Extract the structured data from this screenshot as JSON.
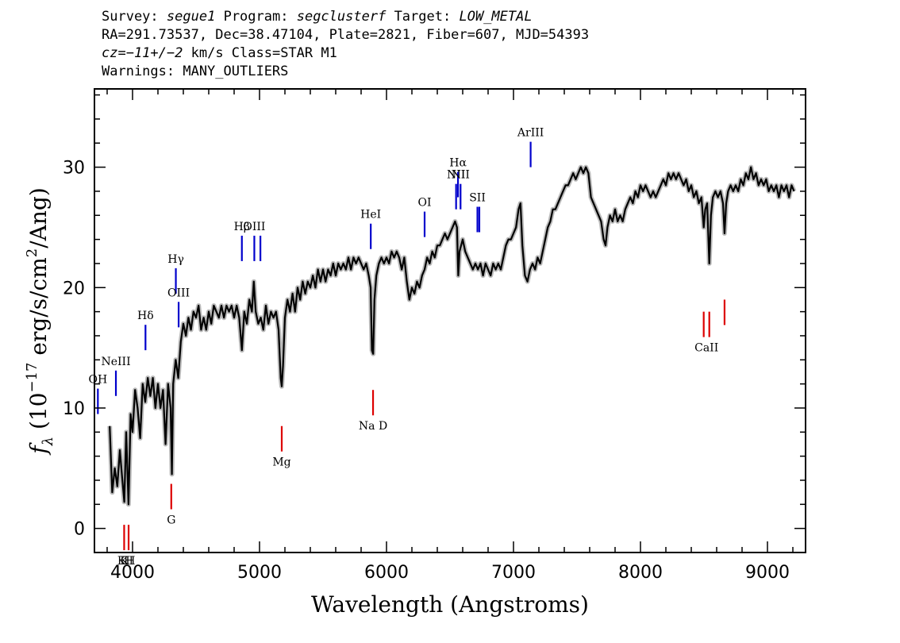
{
  "header": {
    "line1": {
      "survey_label": "Survey:",
      "survey": "segue1",
      "program_label": "Program:",
      "program": "segclusterf",
      "target_label": "Target:",
      "target": "LOW_METAL"
    },
    "line2": "RA=291.73537, Dec=38.47104, Plate=2821, Fiber=607, MJD=54393",
    "line3": {
      "cz": "cz=−11+/−2",
      "rest": "km/s Class=STAR M1"
    },
    "line4": "Warnings: MANY_OUTLIERS"
  },
  "chart_data": {
    "type": "line",
    "xlabel": "Wavelength (Angstroms)",
    "ylabel": "f_λ (10^-17 erg/s/cm^2/Ang)",
    "xlim": [
      3700,
      9300
    ],
    "ylim": [
      -2,
      36.5
    ],
    "xticks": [
      4000,
      5000,
      6000,
      7000,
      8000,
      9000
    ],
    "yticks": [
      0,
      10,
      20,
      30
    ],
    "series_color": "#000000",
    "error_color": "#bbbbbb",
    "emission_color": "#0000cc",
    "absorption_color": "#dd0000",
    "spectrum": [
      [
        3820,
        8.5
      ],
      [
        3840,
        3.0
      ],
      [
        3860,
        5.0
      ],
      [
        3880,
        3.5
      ],
      [
        3900,
        6.5
      ],
      [
        3920,
        4.0
      ],
      [
        3935,
        2.2
      ],
      [
        3950,
        8.0
      ],
      [
        3968,
        2.0
      ],
      [
        3985,
        9.5
      ],
      [
        4000,
        8.0
      ],
      [
        4020,
        11.5
      ],
      [
        4040,
        10.0
      ],
      [
        4060,
        7.5
      ],
      [
        4080,
        12.0
      ],
      [
        4100,
        10.5
      ],
      [
        4120,
        12.5
      ],
      [
        4140,
        11.0
      ],
      [
        4160,
        12.5
      ],
      [
        4180,
        10.0
      ],
      [
        4200,
        12.0
      ],
      [
        4220,
        10.0
      ],
      [
        4240,
        11.5
      ],
      [
        4260,
        7.0
      ],
      [
        4280,
        12.0
      ],
      [
        4300,
        10.0
      ],
      [
        4310,
        4.5
      ],
      [
        4320,
        12.0
      ],
      [
        4340,
        14.0
      ],
      [
        4360,
        12.5
      ],
      [
        4380,
        15.5
      ],
      [
        4400,
        17.0
      ],
      [
        4420,
        16.0
      ],
      [
        4440,
        17.5
      ],
      [
        4460,
        16.5
      ],
      [
        4480,
        18.0
      ],
      [
        4500,
        17.5
      ],
      [
        4520,
        18.5
      ],
      [
        4540,
        16.5
      ],
      [
        4560,
        17.5
      ],
      [
        4580,
        16.5
      ],
      [
        4600,
        18.0
      ],
      [
        4620,
        17.0
      ],
      [
        4640,
        18.5
      ],
      [
        4660,
        18.0
      ],
      [
        4680,
        17.5
      ],
      [
        4700,
        18.5
      ],
      [
        4720,
        17.5
      ],
      [
        4740,
        18.5
      ],
      [
        4760,
        18.0
      ],
      [
        4780,
        18.5
      ],
      [
        4800,
        17.5
      ],
      [
        4820,
        18.5
      ],
      [
        4840,
        17.5
      ],
      [
        4861,
        14.8
      ],
      [
        4880,
        18.0
      ],
      [
        4900,
        17.0
      ],
      [
        4920,
        19.0
      ],
      [
        4940,
        18.0
      ],
      [
        4955,
        20.5
      ],
      [
        4970,
        18.0
      ],
      [
        4990,
        17.0
      ],
      [
        5010,
        17.5
      ],
      [
        5030,
        16.5
      ],
      [
        5050,
        18.5
      ],
      [
        5070,
        17.0
      ],
      [
        5090,
        18.0
      ],
      [
        5110,
        17.5
      ],
      [
        5130,
        18.0
      ],
      [
        5150,
        16.5
      ],
      [
        5167,
        12.5
      ],
      [
        5175,
        11.8
      ],
      [
        5185,
        13.5
      ],
      [
        5200,
        17.5
      ],
      [
        5220,
        19.0
      ],
      [
        5240,
        18.0
      ],
      [
        5260,
        19.5
      ],
      [
        5280,
        18.0
      ],
      [
        5300,
        20.0
      ],
      [
        5320,
        19.0
      ],
      [
        5340,
        20.5
      ],
      [
        5360,
        19.5
      ],
      [
        5380,
        20.5
      ],
      [
        5400,
        20.0
      ],
      [
        5420,
        21.0
      ],
      [
        5440,
        20.0
      ],
      [
        5460,
        21.5
      ],
      [
        5480,
        20.5
      ],
      [
        5500,
        21.5
      ],
      [
        5520,
        20.5
      ],
      [
        5540,
        21.5
      ],
      [
        5560,
        21.0
      ],
      [
        5580,
        22.0
      ],
      [
        5600,
        21.0
      ],
      [
        5620,
        22.0
      ],
      [
        5640,
        21.5
      ],
      [
        5660,
        22.0
      ],
      [
        5680,
        21.5
      ],
      [
        5700,
        22.5
      ],
      [
        5720,
        21.5
      ],
      [
        5740,
        22.5
      ],
      [
        5760,
        22.0
      ],
      [
        5780,
        22.5
      ],
      [
        5800,
        22.0
      ],
      [
        5820,
        21.5
      ],
      [
        5840,
        22.0
      ],
      [
        5860,
        21.0
      ],
      [
        5875,
        20.0
      ],
      [
        5885,
        14.8
      ],
      [
        5895,
        14.5
      ],
      [
        5905,
        19.0
      ],
      [
        5920,
        21.0
      ],
      [
        5940,
        22.0
      ],
      [
        5960,
        22.5
      ],
      [
        5980,
        22.0
      ],
      [
        6000,
        22.5
      ],
      [
        6020,
        22.0
      ],
      [
        6040,
        23.0
      ],
      [
        6060,
        22.5
      ],
      [
        6080,
        23.0
      ],
      [
        6100,
        22.5
      ],
      [
        6120,
        21.5
      ],
      [
        6140,
        22.5
      ],
      [
        6160,
        20.5
      ],
      [
        6180,
        19.0
      ],
      [
        6200,
        20.0
      ],
      [
        6220,
        19.5
      ],
      [
        6240,
        20.5
      ],
      [
        6260,
        20.0
      ],
      [
        6280,
        21.0
      ],
      [
        6300,
        21.5
      ],
      [
        6320,
        22.5
      ],
      [
        6340,
        22.0
      ],
      [
        6360,
        23.0
      ],
      [
        6380,
        22.5
      ],
      [
        6400,
        23.5
      ],
      [
        6420,
        23.5
      ],
      [
        6440,
        24.0
      ],
      [
        6460,
        24.5
      ],
      [
        6480,
        24.0
      ],
      [
        6500,
        24.5
      ],
      [
        6520,
        25.0
      ],
      [
        6540,
        25.5
      ],
      [
        6555,
        25.0
      ],
      [
        6565,
        21.0
      ],
      [
        6575,
        23.0
      ],
      [
        6600,
        24.0
      ],
      [
        6620,
        23.0
      ],
      [
        6640,
        22.5
      ],
      [
        6660,
        22.0
      ],
      [
        6680,
        21.5
      ],
      [
        6700,
        22.0
      ],
      [
        6720,
        21.5
      ],
      [
        6740,
        22.0
      ],
      [
        6760,
        21.0
      ],
      [
        6780,
        22.0
      ],
      [
        6800,
        21.5
      ],
      [
        6820,
        21.0
      ],
      [
        6840,
        22.0
      ],
      [
        6860,
        21.5
      ],
      [
        6880,
        22.0
      ],
      [
        6900,
        21.5
      ],
      [
        6920,
        22.5
      ],
      [
        6940,
        23.5
      ],
      [
        6960,
        24.0
      ],
      [
        6980,
        24.0
      ],
      [
        7000,
        24.5
      ],
      [
        7020,
        25.0
      ],
      [
        7040,
        26.5
      ],
      [
        7055,
        27.0
      ],
      [
        7070,
        23.5
      ],
      [
        7090,
        21.0
      ],
      [
        7110,
        20.5
      ],
      [
        7130,
        21.5
      ],
      [
        7150,
        22.0
      ],
      [
        7170,
        21.5
      ],
      [
        7190,
        22.5
      ],
      [
        7210,
        22.0
      ],
      [
        7230,
        23.0
      ],
      [
        7250,
        24.0
      ],
      [
        7270,
        25.0
      ],
      [
        7290,
        25.5
      ],
      [
        7310,
        26.5
      ],
      [
        7330,
        26.5
      ],
      [
        7350,
        27.0
      ],
      [
        7370,
        27.5
      ],
      [
        7390,
        28.0
      ],
      [
        7410,
        28.5
      ],
      [
        7430,
        28.5
      ],
      [
        7450,
        29.0
      ],
      [
        7470,
        29.5
      ],
      [
        7490,
        29.0
      ],
      [
        7510,
        29.5
      ],
      [
        7530,
        30.0
      ],
      [
        7550,
        29.5
      ],
      [
        7570,
        30.0
      ],
      [
        7590,
        29.5
      ],
      [
        7610,
        27.5
      ],
      [
        7630,
        27.0
      ],
      [
        7650,
        26.5
      ],
      [
        7670,
        26.0
      ],
      [
        7690,
        25.5
      ],
      [
        7710,
        24.0
      ],
      [
        7725,
        23.5
      ],
      [
        7740,
        25.0
      ],
      [
        7760,
        26.0
      ],
      [
        7780,
        25.5
      ],
      [
        7800,
        26.5
      ],
      [
        7820,
        25.5
      ],
      [
        7840,
        26.0
      ],
      [
        7860,
        25.5
      ],
      [
        7880,
        26.5
      ],
      [
        7900,
        27.0
      ],
      [
        7920,
        27.5
      ],
      [
        7940,
        27.0
      ],
      [
        7960,
        28.0
      ],
      [
        7980,
        27.5
      ],
      [
        8000,
        28.5
      ],
      [
        8020,
        28.0
      ],
      [
        8040,
        28.5
      ],
      [
        8060,
        28.0
      ],
      [
        8080,
        27.5
      ],
      [
        8100,
        28.0
      ],
      [
        8120,
        27.5
      ],
      [
        8140,
        28.0
      ],
      [
        8160,
        28.5
      ],
      [
        8180,
        29.0
      ],
      [
        8200,
        28.5
      ],
      [
        8220,
        29.5
      ],
      [
        8240,
        29.0
      ],
      [
        8260,
        29.5
      ],
      [
        8280,
        29.0
      ],
      [
        8300,
        29.5
      ],
      [
        8320,
        29.0
      ],
      [
        8340,
        28.5
      ],
      [
        8360,
        29.0
      ],
      [
        8380,
        28.0
      ],
      [
        8400,
        28.5
      ],
      [
        8420,
        27.5
      ],
      [
        8440,
        28.0
      ],
      [
        8460,
        27.0
      ],
      [
        8480,
        27.5
      ],
      [
        8498,
        25.0
      ],
      [
        8510,
        26.5
      ],
      [
        8525,
        27.0
      ],
      [
        8542,
        22.0
      ],
      [
        8555,
        26.0
      ],
      [
        8570,
        27.5
      ],
      [
        8590,
        28.0
      ],
      [
        8610,
        27.5
      ],
      [
        8630,
        28.0
      ],
      [
        8650,
        27.0
      ],
      [
        8662,
        24.5
      ],
      [
        8675,
        27.0
      ],
      [
        8690,
        28.0
      ],
      [
        8710,
        28.5
      ],
      [
        8730,
        28.0
      ],
      [
        8750,
        28.5
      ],
      [
        8770,
        28.0
      ],
      [
        8790,
        29.0
      ],
      [
        8810,
        28.5
      ],
      [
        8830,
        29.5
      ],
      [
        8850,
        29.0
      ],
      [
        8870,
        30.0
      ],
      [
        8890,
        29.0
      ],
      [
        8910,
        29.5
      ],
      [
        8930,
        28.5
      ],
      [
        8950,
        29.0
      ],
      [
        8970,
        28.5
      ],
      [
        8990,
        29.0
      ],
      [
        9010,
        28.0
      ],
      [
        9030,
        28.5
      ],
      [
        9050,
        28.0
      ],
      [
        9070,
        28.5
      ],
      [
        9090,
        27.5
      ],
      [
        9110,
        28.5
      ],
      [
        9130,
        28.0
      ],
      [
        9150,
        28.5
      ],
      [
        9170,
        27.5
      ],
      [
        9190,
        28.5
      ],
      [
        9210,
        28.0
      ]
    ],
    "emission_lines": [
      {
        "name": "OH",
        "label": "OH",
        "wave": 3727,
        "y": 9.5
      },
      {
        "name": "NeIII",
        "label": "NeIII",
        "wave": 3869,
        "y": 11.0
      },
      {
        "name": "Hdelta",
        "label": "Hδ",
        "wave": 4102,
        "y": 14.8
      },
      {
        "name": "Hgamma",
        "label": "Hγ",
        "wave": 4341,
        "y": 19.5
      },
      {
        "name": "OIII-4363",
        "label": "OIII",
        "wave": 4363,
        "y": 16.7
      },
      {
        "name": "Hbeta",
        "label": "Hβ",
        "wave": 4861,
        "y": 22.2
      },
      {
        "name": "OIII-4959",
        "label": "OIII",
        "wave": 4959,
        "y": 22.2
      },
      {
        "name": "OIII-5007",
        "label": "",
        "wave": 5007,
        "y": 22.2
      },
      {
        "name": "HeI",
        "label": "HeI",
        "wave": 5876,
        "y": 23.2
      },
      {
        "name": "OI",
        "label": "OI",
        "wave": 6300,
        "y": 24.2
      },
      {
        "name": "NII-6548",
        "label": "NII",
        "wave": 6548,
        "y": 26.5
      },
      {
        "name": "Halpha",
        "label": "Hα",
        "wave": 6563,
        "y": 27.5
      },
      {
        "name": "NII-6583",
        "label": "NII",
        "wave": 6583,
        "y": 26.5
      },
      {
        "name": "SII-6716",
        "label": "SII",
        "wave": 6716,
        "y": 24.6
      },
      {
        "name": "SII-6731",
        "label": "",
        "wave": 6731,
        "y": 24.6
      },
      {
        "name": "ArIII",
        "label": "ArIII",
        "wave": 7135,
        "y": 30.0
      }
    ],
    "absorption_lines": [
      {
        "name": "K",
        "label": "K",
        "wave": 3934,
        "y": 0.3
      },
      {
        "name": "H",
        "label": "H",
        "wave": 3969,
        "y": 0.3
      },
      {
        "name": "G",
        "label": "G",
        "wave": 4305,
        "y": 3.7
      },
      {
        "name": "Mg",
        "label": "Mg",
        "wave": 5175,
        "y": 8.5
      },
      {
        "name": "NaD",
        "label": "Na D",
        "wave": 5894,
        "y": 11.5
      },
      {
        "name": "CaII-8498",
        "label": "CaII",
        "wave": 8498,
        "y": 18.0
      },
      {
        "name": "CaII-8542",
        "label": "",
        "wave": 8542,
        "y": 18.0
      },
      {
        "name": "CaII-8662",
        "label": "",
        "wave": 8662,
        "y": 19.0
      }
    ],
    "absorption_pair_labels": [
      {
        "label": "KH",
        "wave": 3951,
        "y": 0.3
      }
    ]
  }
}
